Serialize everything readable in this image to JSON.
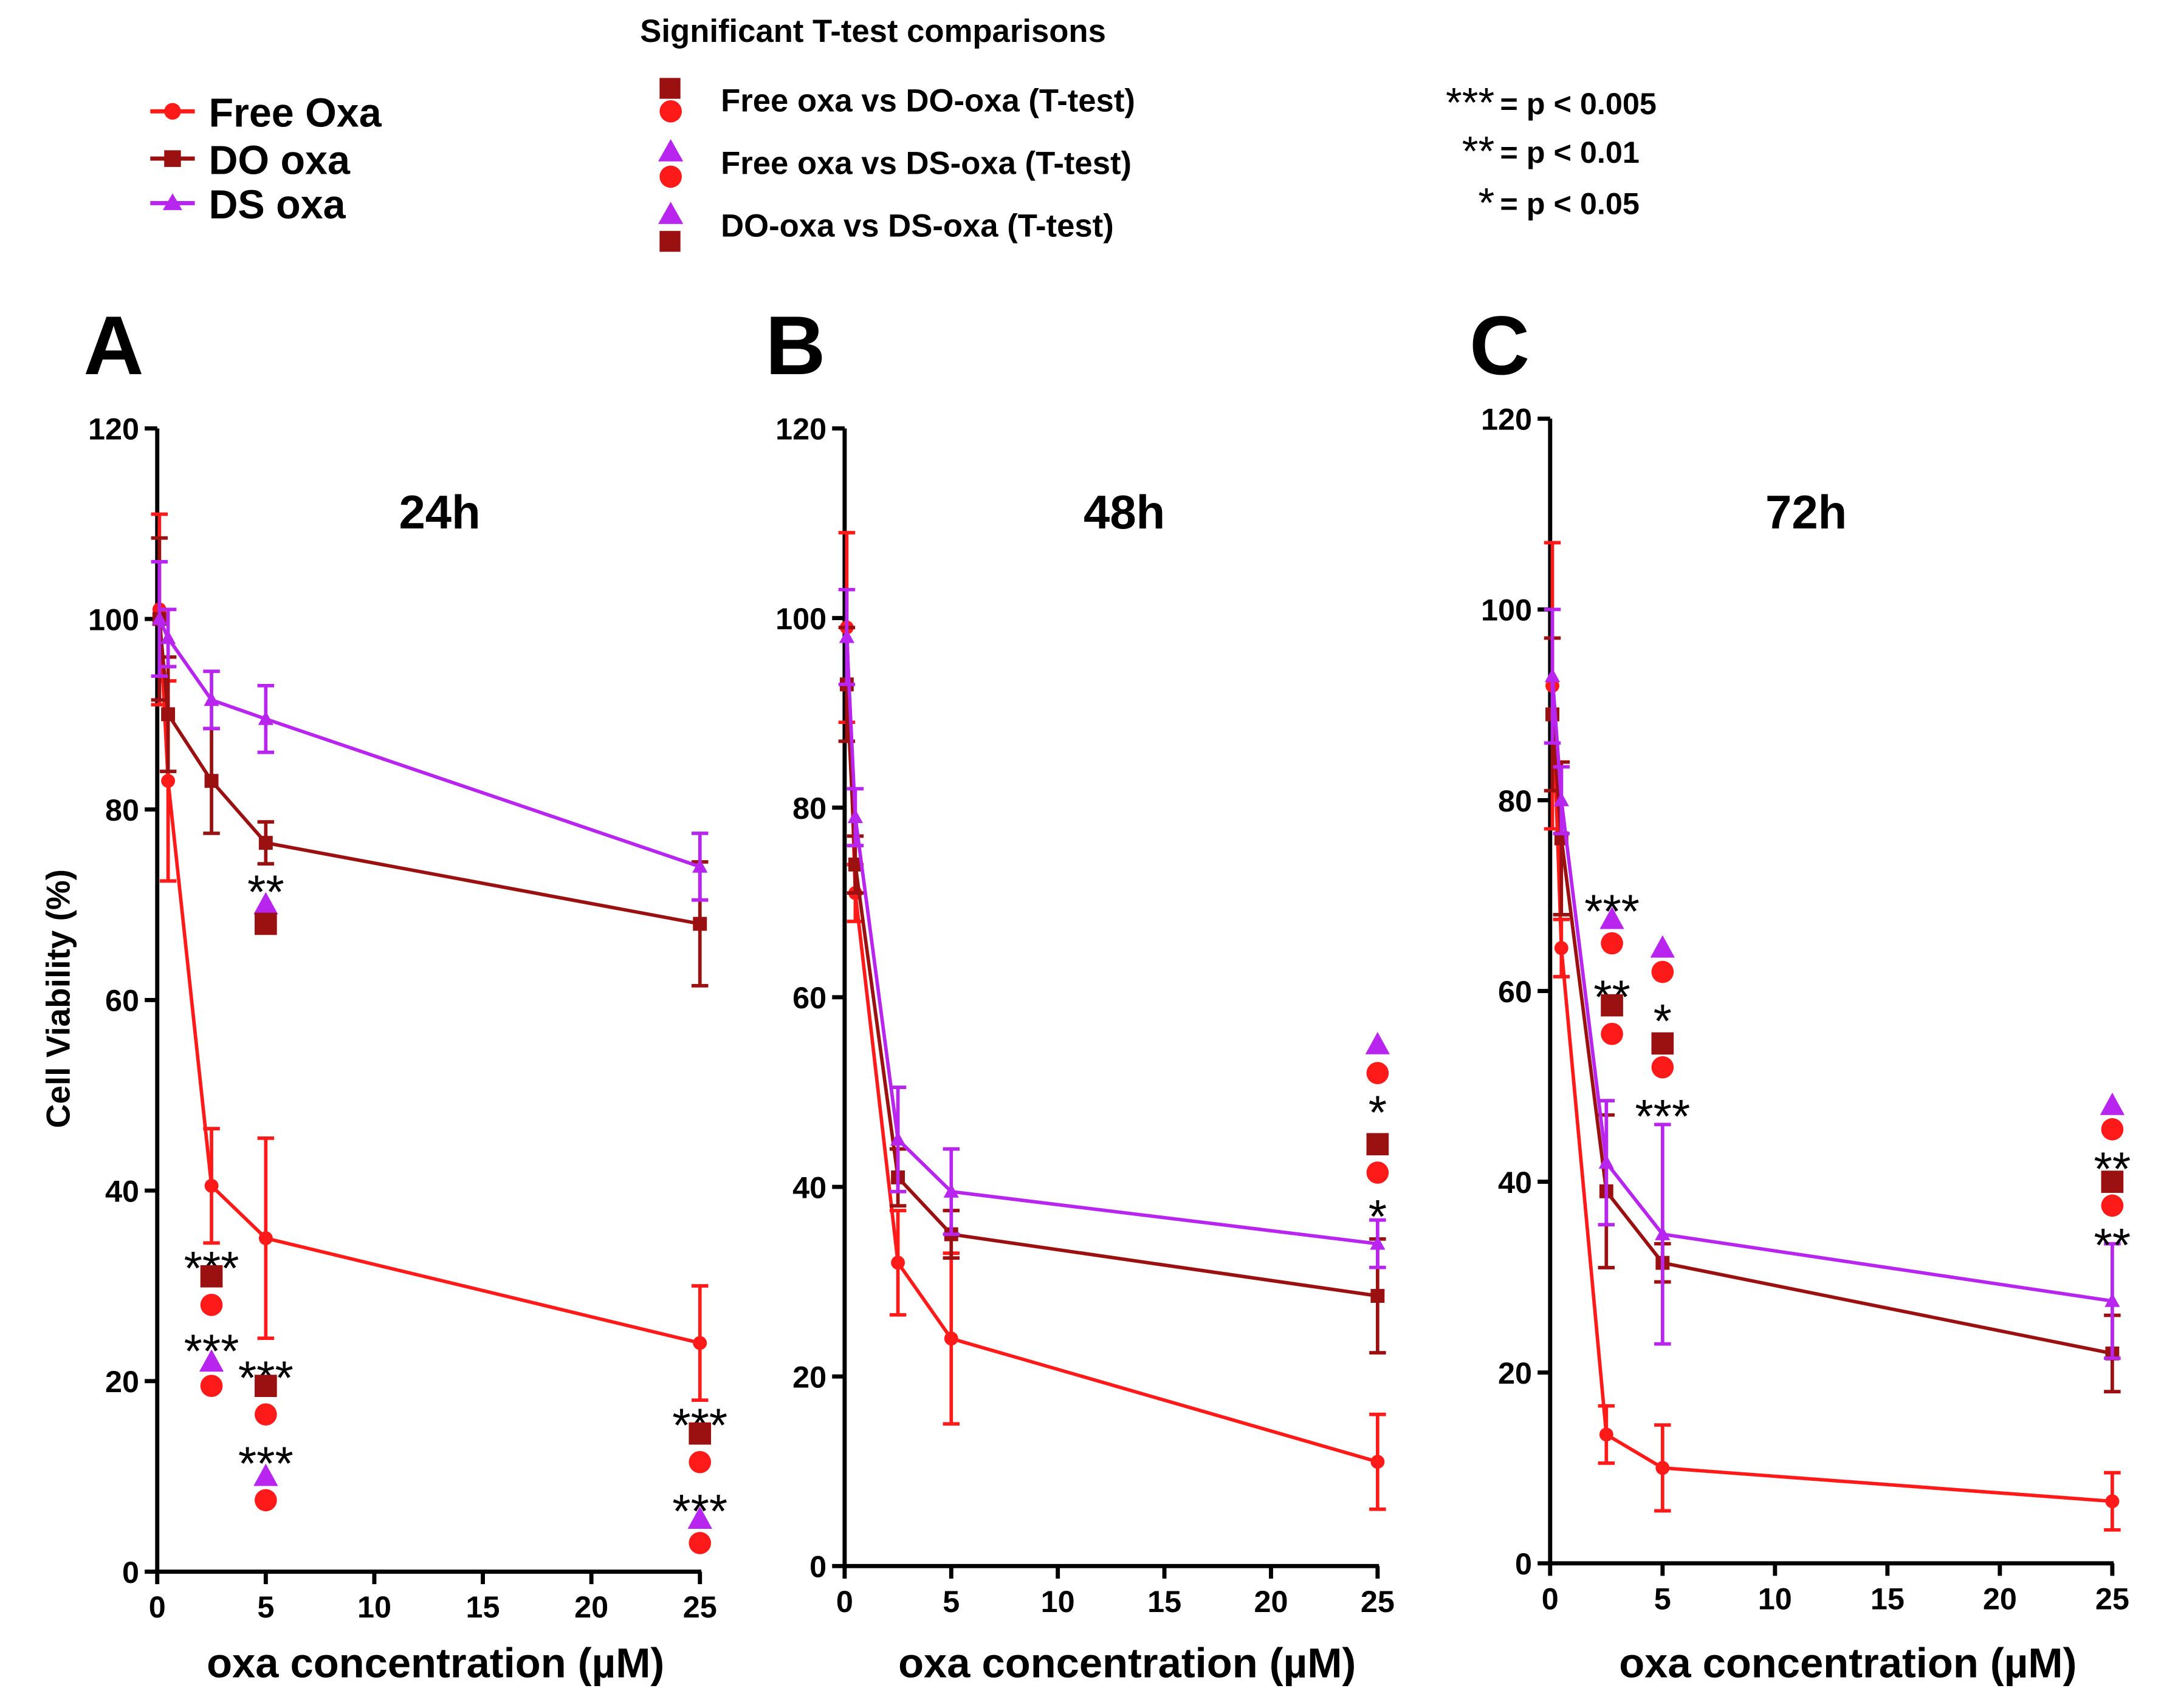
{
  "legend": {
    "series": [
      {
        "label": "Free Oxa",
        "color": "#ff1a1a",
        "marker": "circle"
      },
      {
        "label": "DO oxa",
        "color": "#9b1010",
        "marker": "square"
      },
      {
        "label": "DS oxa",
        "color": "#b825ee",
        "marker": "triangle"
      }
    ]
  },
  "significance": {
    "title": "Significant T-test comparisons",
    "comparisons": [
      {
        "label": "Free oxa vs DO-oxa (T-test)",
        "top": "square",
        "bottom": "circle"
      },
      {
        "label": "Free oxa vs DS-oxa (T-test)",
        "top": "triangle",
        "bottom": "circle"
      },
      {
        "label": "DO-oxa vs DS-oxa (T-test)",
        "top": "triangle",
        "bottom": "square"
      }
    ],
    "keys": [
      {
        "stars": "***",
        "label": "= p < 0.005"
      },
      {
        "stars": "**",
        "label": "= p < 0.01"
      },
      {
        "stars": "*",
        "label": "= p < 0.05"
      }
    ]
  },
  "colors": {
    "free": "#ff1a1a",
    "do": "#9b1010",
    "ds": "#b825ee",
    "axis": "#000000"
  },
  "chart_data": [
    {
      "type": "line",
      "panel_letter": "A",
      "title": "24h",
      "xlabel": "oxa concentration (µM)",
      "ylabel": "Cell Viability (%)",
      "xlim": [
        0,
        25
      ],
      "ylim": [
        0,
        120
      ],
      "xticks": [
        0,
        5,
        10,
        15,
        20,
        25
      ],
      "yticks": [
        0,
        20,
        40,
        60,
        80,
        100,
        120
      ],
      "series": [
        {
          "name": "Free Oxa",
          "color_key": "free",
          "marker": "circle",
          "points": [
            {
              "x": 0.1,
              "y": 101,
              "err": 10
            },
            {
              "x": 0.5,
              "y": 83,
              "err": 10.5
            },
            {
              "x": 2.5,
              "y": 40.5,
              "err": 6
            },
            {
              "x": 5,
              "y": 35,
              "err": 10.5
            },
            {
              "x": 25,
              "y": 24,
              "err": 6
            }
          ]
        },
        {
          "name": "DO oxa",
          "color_key": "do",
          "marker": "square",
          "points": [
            {
              "x": 0.1,
              "y": 100,
              "err": 8.5
            },
            {
              "x": 0.5,
              "y": 90,
              "err": 6
            },
            {
              "x": 2.5,
              "y": 83,
              "err": 5.5
            },
            {
              "x": 5,
              "y": 76.5,
              "err": 2.2
            },
            {
              "x": 25,
              "y": 68,
              "err": 6.5
            }
          ]
        },
        {
          "name": "DS oxa",
          "color_key": "ds",
          "marker": "triangle",
          "points": [
            {
              "x": 0.1,
              "y": 100,
              "err": 6
            },
            {
              "x": 0.5,
              "y": 98,
              "err": 3
            },
            {
              "x": 2.5,
              "y": 91.5,
              "err": 3
            },
            {
              "x": 5,
              "y": 89.5,
              "err": 3.5
            },
            {
              "x": 25,
              "y": 74,
              "err": 3.5
            }
          ]
        }
      ],
      "annotations": [
        {
          "x": 5,
          "y": 72,
          "text": "**"
        },
        {
          "x": 5,
          "y": 70,
          "marker": "triangle",
          "color_key": "ds"
        },
        {
          "x": 5,
          "y": 68,
          "marker": "square",
          "color_key": "do"
        },
        {
          "x": 2.5,
          "y": 32.5,
          "text": "***"
        },
        {
          "x": 2.5,
          "y": 31,
          "marker": "square",
          "color_key": "do"
        },
        {
          "x": 2.5,
          "y": 28,
          "marker": "circle",
          "color_key": "free"
        },
        {
          "x": 2.5,
          "y": 23.8,
          "text": "***"
        },
        {
          "x": 2.5,
          "y": 22,
          "marker": "triangle",
          "color_key": "ds"
        },
        {
          "x": 2.5,
          "y": 19.5,
          "marker": "circle",
          "color_key": "free"
        },
        {
          "x": 5,
          "y": 21,
          "text": "***"
        },
        {
          "x": 5,
          "y": 19.5,
          "marker": "square",
          "color_key": "do"
        },
        {
          "x": 5,
          "y": 16.5,
          "marker": "circle",
          "color_key": "free"
        },
        {
          "x": 5,
          "y": 12,
          "text": "***"
        },
        {
          "x": 5,
          "y": 10,
          "marker": "triangle",
          "color_key": "ds"
        },
        {
          "x": 5,
          "y": 7.5,
          "marker": "circle",
          "color_key": "free"
        },
        {
          "x": 25,
          "y": 16,
          "text": "***"
        },
        {
          "x": 25,
          "y": 14.5,
          "marker": "square",
          "color_key": "do"
        },
        {
          "x": 25,
          "y": 11.5,
          "marker": "circle",
          "color_key": "free"
        },
        {
          "x": 25,
          "y": 7,
          "text": "***"
        },
        {
          "x": 25,
          "y": 5.5,
          "marker": "triangle",
          "color_key": "ds"
        },
        {
          "x": 25,
          "y": 3,
          "marker": "circle",
          "color_key": "free"
        }
      ]
    },
    {
      "type": "line",
      "panel_letter": "B",
      "title": "48h",
      "xlabel": "oxa concentration (µM)",
      "ylabel": "",
      "xlim": [
        0,
        25
      ],
      "ylim": [
        0,
        120
      ],
      "xticks": [
        0,
        5,
        10,
        15,
        20,
        25
      ],
      "yticks": [
        0,
        20,
        40,
        60,
        80,
        100,
        120
      ],
      "series": [
        {
          "name": "Free Oxa",
          "color_key": "free",
          "marker": "circle",
          "points": [
            {
              "x": 0.1,
              "y": 99,
              "err": 10
            },
            {
              "x": 0.5,
              "y": 71,
              "err": 3
            },
            {
              "x": 2.5,
              "y": 32,
              "err": 5.5
            },
            {
              "x": 5,
              "y": 24,
              "err": 9
            },
            {
              "x": 25,
              "y": 11,
              "err": 5
            }
          ]
        },
        {
          "name": "DO oxa",
          "color_key": "do",
          "marker": "square",
          "points": [
            {
              "x": 0.1,
              "y": 93,
              "err": 6
            },
            {
              "x": 0.5,
              "y": 74,
              "err": 3
            },
            {
              "x": 2.5,
              "y": 41,
              "err": 3
            },
            {
              "x": 5,
              "y": 35,
              "err": 2.5
            },
            {
              "x": 25,
              "y": 28.5,
              "err": 6
            }
          ]
        },
        {
          "name": "DS oxa",
          "color_key": "ds",
          "marker": "triangle",
          "points": [
            {
              "x": 0.1,
              "y": 98,
              "err": 5
            },
            {
              "x": 0.5,
              "y": 79,
              "err": 3
            },
            {
              "x": 2.5,
              "y": 45,
              "err": 5.5
            },
            {
              "x": 5,
              "y": 39.5,
              "err": 4.5
            },
            {
              "x": 25,
              "y": 34,
              "err": 2.5
            }
          ]
        }
      ],
      "annotations": [
        {
          "x": 25,
          "y": 55,
          "marker": "triangle",
          "color_key": "ds"
        },
        {
          "x": 25,
          "y": 52,
          "marker": "circle",
          "color_key": "free"
        },
        {
          "x": 25,
          "y": 48.5,
          "text": "*"
        },
        {
          "x": 25,
          "y": 44.5,
          "marker": "square",
          "color_key": "do"
        },
        {
          "x": 25,
          "y": 41.5,
          "marker": "circle",
          "color_key": "free"
        },
        {
          "x": 25,
          "y": 37.5,
          "text": "*"
        }
      ]
    },
    {
      "type": "line",
      "panel_letter": "C",
      "title": "72h",
      "xlabel": "oxa concentration (µM)",
      "ylabel": "",
      "xlim": [
        0,
        25
      ],
      "ylim": [
        0,
        120
      ],
      "xticks": [
        0,
        5,
        10,
        15,
        20,
        25
      ],
      "yticks": [
        0,
        20,
        40,
        60,
        80,
        100,
        120
      ],
      "series": [
        {
          "name": "Free Oxa",
          "color_key": "free",
          "marker": "circle",
          "points": [
            {
              "x": 0.1,
              "y": 92,
              "err": 15
            },
            {
              "x": 0.5,
              "y": 64.5,
              "err": 3
            },
            {
              "x": 2.5,
              "y": 13.5,
              "err": 3
            },
            {
              "x": 5,
              "y": 10,
              "err": 4.5
            },
            {
              "x": 25,
              "y": 6.5,
              "err": 3
            }
          ]
        },
        {
          "name": "DO oxa",
          "color_key": "do",
          "marker": "square",
          "points": [
            {
              "x": 0.1,
              "y": 89,
              "err": 8
            },
            {
              "x": 0.5,
              "y": 76,
              "err": 8
            },
            {
              "x": 2.5,
              "y": 39,
              "err": 8
            },
            {
              "x": 5,
              "y": 31.5,
              "err": 2
            },
            {
              "x": 25,
              "y": 22,
              "err": 4
            }
          ]
        },
        {
          "name": "DS oxa",
          "color_key": "ds",
          "marker": "triangle",
          "points": [
            {
              "x": 0.1,
              "y": 93,
              "err": 7
            },
            {
              "x": 0.5,
              "y": 80,
              "err": 3.5
            },
            {
              "x": 2.5,
              "y": 42,
              "err": 6.5
            },
            {
              "x": 5,
              "y": 34.5,
              "err": 11.5
            },
            {
              "x": 25,
              "y": 27.5,
              "err": 6
            }
          ]
        }
      ],
      "annotations": [
        {
          "x": 2.75,
          "y": 69,
          "text": "***"
        },
        {
          "x": 2.75,
          "y": 67.5,
          "marker": "triangle",
          "color_key": "ds"
        },
        {
          "x": 2.75,
          "y": 65,
          "marker": "circle",
          "color_key": "free"
        },
        {
          "x": 2.75,
          "y": 60,
          "text": "**"
        },
        {
          "x": 2.75,
          "y": 58.5,
          "marker": "square",
          "color_key": "do"
        },
        {
          "x": 2.75,
          "y": 55.5,
          "marker": "circle",
          "color_key": "free"
        },
        {
          "x": 5,
          "y": 64.5,
          "marker": "triangle",
          "color_key": "ds"
        },
        {
          "x": 5,
          "y": 62,
          "marker": "circle",
          "color_key": "free"
        },
        {
          "x": 5,
          "y": 57.5,
          "text": "*"
        },
        {
          "x": 5,
          "y": 54.5,
          "marker": "square",
          "color_key": "do"
        },
        {
          "x": 5,
          "y": 52,
          "marker": "circle",
          "color_key": "free"
        },
        {
          "x": 5,
          "y": 47.5,
          "text": "***"
        },
        {
          "x": 25,
          "y": 48,
          "marker": "triangle",
          "color_key": "ds"
        },
        {
          "x": 25,
          "y": 45.5,
          "marker": "circle",
          "color_key": "free"
        },
        {
          "x": 25,
          "y": 42,
          "text": "**"
        },
        {
          "x": 25,
          "y": 40,
          "marker": "square",
          "color_key": "do"
        },
        {
          "x": 25,
          "y": 37.5,
          "marker": "circle",
          "color_key": "free"
        },
        {
          "x": 25,
          "y": 34,
          "text": "**"
        }
      ]
    }
  ]
}
